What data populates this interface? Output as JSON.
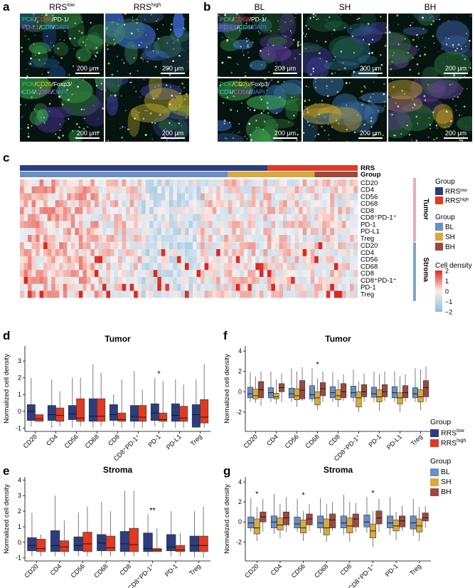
{
  "panel_labels": {
    "a": "a",
    "b": "b",
    "c": "c",
    "d": "d",
    "e": "e",
    "f": "f",
    "g": "g"
  },
  "panel_a": {
    "col_headers": [
      {
        "base": "RRS",
        "sup": "low"
      },
      {
        "base": "RRS",
        "sup": "high"
      }
    ],
    "stain1": [
      [
        {
          "t": "PCK",
          "c": "#39d353"
        },
        {
          "t": "/",
          "c": "#fff"
        },
        {
          "t": "CD68",
          "c": "#ff3b3b"
        },
        {
          "t": "/",
          "c": "#fff"
        },
        {
          "t": "PD-1/",
          "c": "#fff"
        }
      ],
      [
        {
          "t": "PD-L1",
          "c": "#e040e0"
        },
        {
          "t": "/",
          "c": "#fff"
        },
        {
          "t": "CD8",
          "c": "#40e0e0"
        },
        {
          "t": "/",
          "c": "#fff"
        },
        {
          "t": "DAPI",
          "c": "#4a7bff"
        }
      ]
    ],
    "stain2": [
      [
        {
          "t": "PCK",
          "c": "#39d353"
        },
        {
          "t": "/",
          "c": "#fff"
        },
        {
          "t": "CD20",
          "c": "#ffd400"
        },
        {
          "t": "/",
          "c": "#fff"
        },
        {
          "t": "Foxp3/",
          "c": "#fff"
        }
      ],
      [
        {
          "t": "CD4",
          "c": "#40e0e0"
        },
        {
          "t": "/",
          "c": "#fff"
        },
        {
          "t": "CD56",
          "c": "#e040e0"
        },
        {
          "t": "/",
          "c": "#fff"
        },
        {
          "t": "DAPI",
          "c": "#4a7bff"
        }
      ]
    ],
    "scale": "200 μm"
  },
  "panel_b": {
    "col_headers": [
      "BL",
      "SH",
      "BH"
    ],
    "scale": "200 μm"
  },
  "panel_c": {
    "top_labels": [
      "RRS",
      "Group"
    ],
    "tumor_rows": [
      "CD20",
      "CD4",
      "CD56",
      "CD68",
      "CD8",
      "CD8⁺PD-1⁺",
      "PD-1",
      "PD-L1",
      "Treg"
    ],
    "stroma_rows": [
      "CD20",
      "CD4",
      "CD56",
      "CD68",
      "CD8",
      "CD8⁺PD-1⁺",
      "PD-1",
      "Treg"
    ],
    "side_labels": [
      "Tumor",
      "Stroma"
    ],
    "legend": {
      "group1_title": "Group",
      "group1": [
        {
          "base": "RRS",
          "sup": "low",
          "color": "#2c3e7e"
        },
        {
          "base": "RRS",
          "sup": "high",
          "color": "#e03a22"
        }
      ],
      "group2_title": "Group",
      "group2": [
        {
          "label": "BL",
          "color": "#6a8fc1"
        },
        {
          "label": "SH",
          "color": "#d9a93e"
        },
        {
          "label": "BH",
          "color": "#9c4a3e"
        }
      ],
      "density_title": "Cell density",
      "density_ticks": [
        "2",
        "1",
        "0",
        "−1",
        "−2"
      ]
    }
  },
  "colors": {
    "rrs_low": "#2c3e7e",
    "rrs_high": "#e03a22",
    "bl": "#6a8fc1",
    "sh": "#d9a93e",
    "bh": "#9c4a3e",
    "tumor_bar": "#f0a8c0",
    "stroma_bar": "#7fa3d0"
  },
  "chart_data": [
    {
      "panel": "d",
      "type": "box",
      "title": "Tumor",
      "ylabel": "Normalized cell density",
      "ylim": [
        -1.2,
        3.9
      ],
      "yticks": [
        -1,
        0,
        1,
        2,
        3
      ],
      "categories": [
        "CD20",
        "CD4",
        "CD56",
        "CD68",
        "CD8",
        "CD8⁺PD-1⁺",
        "PD-1",
        "PD-L1",
        "Treg"
      ],
      "series": [
        {
          "name": "RRSlow",
          "color": "#2c3e7e",
          "boxes": [
            [
              -0.9,
              -0.55,
              0,
              0.4,
              2.0
            ],
            [
              -1.0,
              -0.55,
              -0.2,
              0.35,
              1.9
            ],
            [
              -1.0,
              -0.5,
              -0.15,
              0.35,
              2.0
            ],
            [
              -1.0,
              -0.6,
              -0.3,
              0.75,
              2.8
            ],
            [
              -0.9,
              -0.55,
              -0.2,
              0.4,
              1.0
            ],
            [
              -1.0,
              -0.6,
              -0.3,
              0.35,
              2.4
            ],
            [
              -0.9,
              -0.55,
              -0.1,
              0.45,
              2.0
            ],
            [
              -1.0,
              -0.6,
              -0.25,
              0.45,
              1.9
            ],
            [
              -1.0,
              -0.95,
              -0.2,
              0.4,
              1.9
            ]
          ]
        },
        {
          "name": "RRShigh",
          "color": "#e03a22",
          "boxes": [
            [
              -0.6,
              -0.6,
              -0.45,
              -0.2,
              -0.2
            ],
            [
              -0.9,
              -0.6,
              -0.25,
              0.2,
              1.2
            ],
            [
              -0.9,
              -0.6,
              -0.4,
              0.75,
              2.0
            ],
            [
              -0.9,
              -0.6,
              -0.3,
              0.75,
              2.3
            ],
            [
              -1.0,
              -0.6,
              -0.5,
              -0.1,
              1.9
            ],
            [
              -1.0,
              -0.6,
              -0.35,
              0.35,
              1.3
            ],
            [
              -1.0,
              -0.6,
              -0.5,
              -0.1,
              1.8
            ],
            [
              -1.0,
              -0.6,
              -0.4,
              0.3,
              1.6
            ],
            [
              -1.0,
              -0.7,
              -0.35,
              0.7,
              2.8
            ]
          ]
        }
      ],
      "annotations": [
        {
          "category": "PD-1",
          "text": "*"
        }
      ]
    },
    {
      "panel": "e",
      "type": "box",
      "title": "Stroma",
      "ylabel": "Normalized cell density",
      "ylim": [
        -1.2,
        4.2
      ],
      "yticks": [
        -1,
        0,
        1,
        2,
        3,
        4
      ],
      "categories": [
        "CD20",
        "CD4",
        "CD56",
        "CD68",
        "CD8",
        "CD8⁺PD-1⁺",
        "PD-1",
        "Treg"
      ],
      "series": [
        {
          "name": "RRSlow",
          "color": "#2c3e7e",
          "boxes": [
            [
              -0.9,
              -0.55,
              -0.2,
              0.3,
              1.9
            ],
            [
              -0.9,
              -0.6,
              -0.2,
              0.75,
              3.0
            ],
            [
              -0.9,
              -0.55,
              -0.2,
              0.35,
              1.9
            ],
            [
              -0.9,
              -0.55,
              -0.05,
              0.5,
              2.6
            ],
            [
              -0.9,
              -0.6,
              -0.1,
              0.7,
              3.3
            ],
            [
              -0.9,
              -0.6,
              -0.4,
              0.6,
              1.8
            ],
            [
              -0.9,
              -0.55,
              -0.3,
              0.5,
              2.0
            ],
            [
              -1.0,
              -0.6,
              -0.2,
              0.4,
              2.0
            ]
          ]
        },
        {
          "name": "RRShigh",
          "color": "#e03a22",
          "boxes": [
            [
              -0.9,
              -0.6,
              -0.4,
              0.2,
              0.5
            ],
            [
              -0.9,
              -0.6,
              -0.3,
              0.1,
              1.4
            ],
            [
              -0.9,
              -0.6,
              -0.1,
              0.65,
              2.3
            ],
            [
              -0.9,
              -0.55,
              -0.35,
              0.4,
              2.0
            ],
            [
              -0.9,
              -0.6,
              -0.15,
              0.9,
              3.3
            ],
            [
              -0.6,
              -0.6,
              -0.5,
              -0.4,
              0.9
            ],
            [
              -0.9,
              -0.6,
              -0.5,
              -0.2,
              0.6
            ],
            [
              -1.0,
              -0.6,
              -0.2,
              0.4,
              2.3
            ]
          ]
        }
      ],
      "annotations": [
        {
          "category": "CD8⁺PD-1⁺",
          "text": "**"
        }
      ]
    },
    {
      "panel": "f",
      "type": "box",
      "title": "Tumor",
      "ylabel": "Normalized cell density",
      "ylim": [
        -3.9,
        4.5
      ],
      "yticks": [
        -2,
        0,
        2,
        4
      ],
      "categories": [
        "CD20",
        "CD4",
        "CD56",
        "CD68",
        "CD8",
        "CD8⁺PD-1⁺",
        "PD-1",
        "PD-L1",
        "Treg"
      ],
      "series": [
        {
          "name": "BL",
          "color": "#6a8fc1",
          "boxes": [
            [
              -1.0,
              -0.6,
              -0.2,
              0.45,
              1.9
            ],
            [
              -1.0,
              -0.6,
              -0.1,
              0.4,
              2.0
            ],
            [
              -1.0,
              -0.6,
              -0.2,
              0.35,
              2.3
            ],
            [
              -1.0,
              -0.7,
              -0.3,
              0.6,
              2.3
            ],
            [
              -1.0,
              -0.6,
              -0.1,
              0.5,
              1.9
            ],
            [
              -1.0,
              -0.55,
              -0.1,
              0.55,
              2.2
            ],
            [
              -1.0,
              -0.55,
              -0.2,
              0.45,
              2.0
            ],
            [
              -1.0,
              -0.6,
              -0.1,
              0.5,
              2.0
            ],
            [
              -1.0,
              -0.6,
              -0.2,
              0.4,
              2.3
            ]
          ]
        },
        {
          "name": "SH",
          "color": "#d9a93e",
          "boxes": [
            [
              -1.1,
              -0.7,
              -0.4,
              0.25,
              1.5
            ],
            [
              -1.2,
              -0.7,
              -0.5,
              -0.15,
              1.2
            ],
            [
              -1.5,
              -0.8,
              -0.4,
              0.3,
              2.0
            ],
            [
              -1.8,
              -1.3,
              -0.6,
              0.0,
              1.3
            ],
            [
              -1.5,
              -0.8,
              -0.4,
              0.2,
              1.2
            ],
            [
              -2.0,
              -1.5,
              -0.6,
              0.0,
              1.0
            ],
            [
              -1.9,
              -1.0,
              -0.5,
              0.2,
              1.7
            ],
            [
              -2.0,
              -1.2,
              -0.6,
              -0.1,
              1.5
            ],
            [
              -1.8,
              -1.0,
              -0.5,
              0.2,
              2.2
            ]
          ]
        },
        {
          "name": "BH",
          "color": "#9c4a3e",
          "boxes": [
            [
              -1.4,
              -0.6,
              0.2,
              1.0,
              2.0
            ],
            [
              -1.0,
              0.0,
              0.4,
              0.8,
              1.8
            ],
            [
              -0.9,
              -0.7,
              0.15,
              1.1,
              2.4
            ],
            [
              -1.0,
              -0.4,
              0.3,
              0.9,
              2.0
            ],
            [
              -0.9,
              -0.6,
              0.0,
              0.8,
              1.7
            ],
            [
              -1.0,
              -0.5,
              0.0,
              0.7,
              1.8
            ],
            [
              -0.9,
              -0.5,
              0.0,
              0.7,
              2.0
            ],
            [
              -1.0,
              -0.6,
              -0.1,
              0.6,
              1.7
            ],
            [
              -1.0,
              -0.5,
              0.4,
              1.1,
              2.5
            ]
          ]
        }
      ],
      "annotations": [
        {
          "category": "CD68",
          "text": "*"
        }
      ]
    },
    {
      "panel": "g",
      "type": "box",
      "title": "Stroma",
      "ylabel": "Normalized cell density",
      "ylim": [
        -3.9,
        4.5
      ],
      "yticks": [
        -2,
        0,
        2,
        4
      ],
      "categories": [
        "CD20",
        "CD4",
        "CD56",
        "CD68",
        "CD8",
        "CD8⁺PD-1⁺",
        "PD-1",
        "Treg"
      ],
      "series": [
        {
          "name": "BL",
          "color": "#6a8fc1",
          "boxes": [
            [
              -1.0,
              -0.6,
              -0.1,
              0.5,
              2.4
            ],
            [
              -1.2,
              -0.6,
              0.0,
              0.6,
              2.8
            ],
            [
              -1.0,
              -0.6,
              -0.2,
              0.5,
              2.3
            ],
            [
              -1.1,
              -0.6,
              -0.1,
              0.6,
              2.4
            ],
            [
              -1.3,
              -0.6,
              -0.1,
              0.6,
              2.7
            ],
            [
              -1.1,
              -0.5,
              0.0,
              0.7,
              2.5
            ],
            [
              -1.3,
              -0.6,
              -0.1,
              0.6,
              2.5
            ],
            [
              -1.4,
              -0.7,
              -0.1,
              0.6,
              2.3
            ]
          ]
        },
        {
          "name": "SH",
          "color": "#d9a93e",
          "boxes": [
            [
              -1.9,
              -1.2,
              -0.6,
              0.3,
              1.5
            ],
            [
              -1.6,
              -0.8,
              -0.3,
              0.4,
              1.8
            ],
            [
              -1.9,
              -1.1,
              -0.6,
              0.2,
              1.1
            ],
            [
              -2.0,
              -1.3,
              -0.6,
              0.3,
              1.8
            ],
            [
              -2.0,
              -1.1,
              -0.4,
              0.4,
              2.0
            ],
            [
              -2.5,
              -1.6,
              -0.9,
              -0.2,
              1.1
            ],
            [
              -1.8,
              -0.9,
              -0.4,
              0.2,
              1.0
            ],
            [
              -1.9,
              -1.0,
              -0.4,
              0.3,
              1.5
            ]
          ]
        },
        {
          "name": "BH",
          "color": "#9c4a3e",
          "boxes": [
            [
              -1.0,
              0.0,
              0.5,
              1.0,
              2.3
            ],
            [
              -1.0,
              -0.3,
              0.4,
              1.0,
              2.5
            ],
            [
              -0.9,
              -0.3,
              0.3,
              0.8,
              1.8
            ],
            [
              -0.9,
              -0.6,
              0.2,
              0.8,
              2.0
            ],
            [
              -1.0,
              -0.5,
              0.3,
              0.8,
              1.9
            ],
            [
              -1.0,
              -0.2,
              0.4,
              1.1,
              2.3
            ],
            [
              -0.9,
              -0.5,
              0.1,
              0.6,
              1.6
            ],
            [
              -0.6,
              0.1,
              0.4,
              0.9,
              1.6
            ]
          ]
        }
      ],
      "annotations": [
        {
          "category": "CD20",
          "text": "*"
        },
        {
          "category": "CD56",
          "text": "*"
        },
        {
          "category": "CD8⁺PD-1⁺",
          "text": "*"
        }
      ]
    }
  ],
  "legend_de": {
    "title": "Group",
    "items": [
      {
        "base": "RRS",
        "sup": "low",
        "color": "#2c3e7e"
      },
      {
        "base": "RRS",
        "sup": "high",
        "color": "#e03a22"
      }
    ]
  },
  "legend_fg": {
    "title": "Group",
    "items": [
      {
        "label": "BL",
        "color": "#6a8fc1"
      },
      {
        "label": "SH",
        "color": "#d9a93e"
      },
      {
        "label": "BH",
        "color": "#9c4a3e"
      }
    ]
  }
}
